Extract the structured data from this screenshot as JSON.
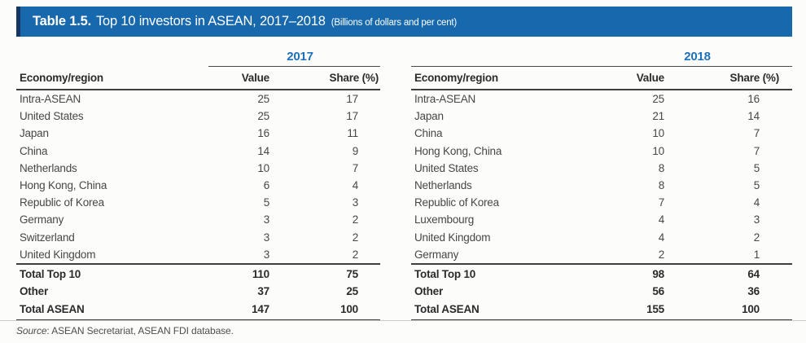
{
  "title_bar": {
    "label": "Table 1.5.",
    "title": "Top 10 investors in ASEAN, 2017–2018",
    "subtitle": "(Billions of dollars and per cent)"
  },
  "colors": {
    "header_bar": "#1768ac",
    "header_bar_accent": "#16365f",
    "year_label_blue": "#1d71b8",
    "rule_dark": "#3e3e3e",
    "text_bold": "#2b2b2b",
    "text_data": "#474747"
  },
  "tables": [
    {
      "year": "2017",
      "columns": {
        "economy": "Economy/region",
        "value": "Value",
        "share": "Share (%)"
      },
      "rows": [
        {
          "economy": "Intra-ASEAN",
          "value": "25",
          "share": "17"
        },
        {
          "economy": "United States",
          "value": "25",
          "share": "17"
        },
        {
          "economy": "Japan",
          "value": "16",
          "share": "11"
        },
        {
          "economy": "China",
          "value": "14",
          "share": "9"
        },
        {
          "economy": "Netherlands",
          "value": "10",
          "share": "7"
        },
        {
          "economy": "Hong Kong, China",
          "value": "6",
          "share": "4"
        },
        {
          "economy": "Republic of Korea",
          "value": "5",
          "share": "3"
        },
        {
          "economy": "Germany",
          "value": "3",
          "share": "2"
        },
        {
          "economy": "Switzerland",
          "value": "3",
          "share": "2"
        },
        {
          "economy": "United Kingdom",
          "value": "3",
          "share": "2"
        }
      ],
      "totals": [
        {
          "economy": "Total Top 10",
          "value": "110",
          "share": "75"
        },
        {
          "economy": "Other",
          "value": "37",
          "share": "25"
        },
        {
          "economy": "Total ASEAN",
          "value": "147",
          "share": "100"
        }
      ]
    },
    {
      "year": "2018",
      "columns": {
        "economy": "Economy/region",
        "value": "Value",
        "share": "Share (%)"
      },
      "rows": [
        {
          "economy": "Intra-ASEAN",
          "value": "25",
          "share": "16"
        },
        {
          "economy": "Japan",
          "value": "21",
          "share": "14"
        },
        {
          "economy": "China",
          "value": "10",
          "share": "7"
        },
        {
          "economy": "Hong Kong, China",
          "value": "10",
          "share": "7"
        },
        {
          "economy": "United States",
          "value": "8",
          "share": "5"
        },
        {
          "economy": "Netherlands",
          "value": "8",
          "share": "5"
        },
        {
          "economy": "Republic of Korea",
          "value": "7",
          "share": "4"
        },
        {
          "economy": "Luxembourg",
          "value": "4",
          "share": "3"
        },
        {
          "economy": "United Kingdom",
          "value": "4",
          "share": "2"
        },
        {
          "economy": "Germany",
          "value": "2",
          "share": "1"
        }
      ],
      "totals": [
        {
          "economy": "Total Top 10",
          "value": "98",
          "share": "64"
        },
        {
          "economy": "Other",
          "value": "56",
          "share": "36"
        },
        {
          "economy": "Total ASEAN",
          "value": "155",
          "share": "100"
        }
      ]
    }
  ],
  "source_note": {
    "prefix": "Source",
    "text": ": ASEAN Secretariat, ASEAN FDI database."
  }
}
